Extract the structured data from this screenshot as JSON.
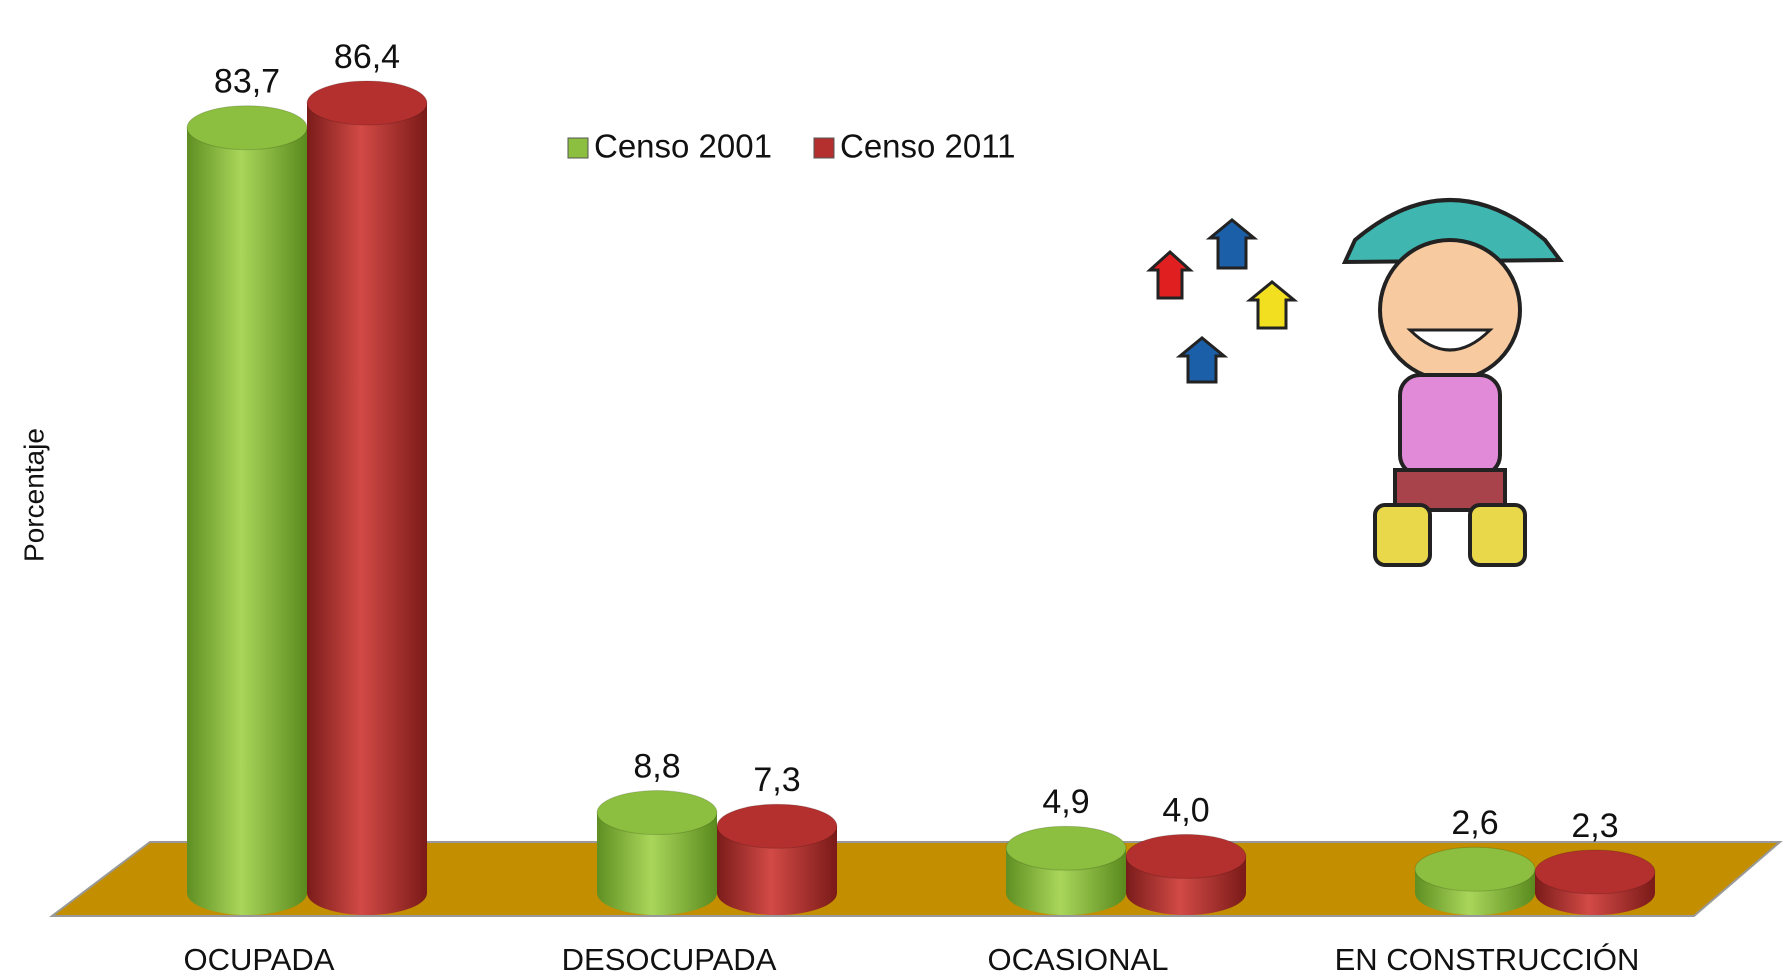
{
  "chart_data": {
    "type": "bar3d",
    "y_label": "Porcentaje",
    "categories": [
      "OCUPADA",
      "DESOCUPADA",
      "OCASIONAL",
      "EN CONSTRUCCIÓN"
    ],
    "series": [
      {
        "name": "Censo 2001",
        "color": "#8cbf3f",
        "values": [
          83.7,
          8.8,
          4.9,
          2.6
        ],
        "value_labels": [
          "83,7",
          "8,8",
          "4,9",
          "2,6"
        ]
      },
      {
        "name": "Censo 2011",
        "color": "#b3302e",
        "values": [
          86.4,
          7.3,
          4.0,
          2.3
        ],
        "value_labels": [
          "86,4",
          "7,3",
          "4,0",
          "2,3"
        ]
      }
    ],
    "legend": "top-center",
    "floor_color": "#c38f00"
  }
}
